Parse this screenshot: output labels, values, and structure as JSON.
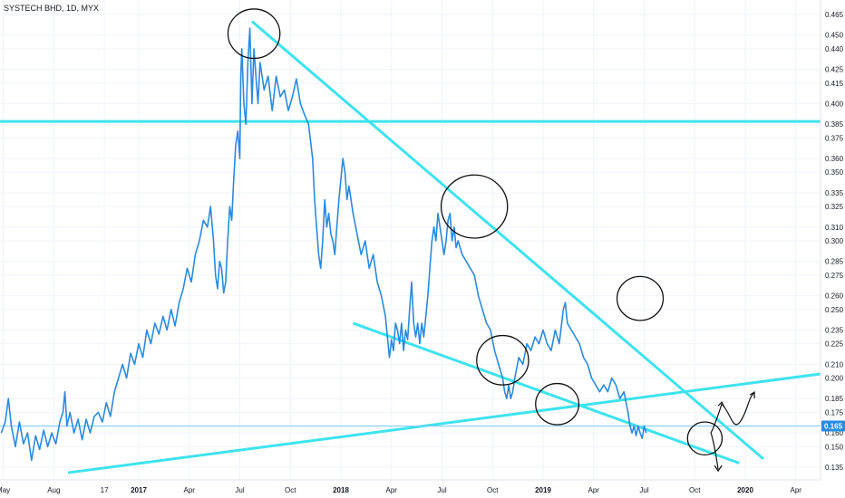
{
  "chart_data": {
    "type": "line",
    "title": "SYSTECH BHD, 1D, MYX",
    "ylim": [
      0.125,
      0.47
    ],
    "y_ticks": [
      "0.465",
      "0.450",
      "0.440",
      "0.425",
      "0.415",
      "0.400",
      "0.385",
      "0.375",
      "0.360",
      "0.350",
      "0.335",
      "0.325",
      "0.310",
      "0.300",
      "0.285",
      "0.275",
      "0.260",
      "0.250",
      "0.235",
      "0.225",
      "0.210",
      "0.200",
      "0.185",
      "0.175",
      "0.160",
      "0.150",
      "0.135"
    ],
    "x_ticks": [
      {
        "label": "May",
        "t": 2016.33,
        "year": false
      },
      {
        "label": "Aug",
        "t": 2016.58,
        "year": false
      },
      {
        "label": "17",
        "t": 2016.83,
        "year": false
      },
      {
        "label": "2017",
        "t": 2017.0,
        "year": true
      },
      {
        "label": "Apr",
        "t": 2017.25,
        "year": false
      },
      {
        "label": "Jul",
        "t": 2017.5,
        "year": false
      },
      {
        "label": "Oct",
        "t": 2017.75,
        "year": false
      },
      {
        "label": "2018",
        "t": 2018.0,
        "year": true
      },
      {
        "label": "Apr",
        "t": 2018.25,
        "year": false
      },
      {
        "label": "Jul",
        "t": 2018.5,
        "year": false
      },
      {
        "label": "Oct",
        "t": 2018.75,
        "year": false
      },
      {
        "label": "2019",
        "t": 2019.0,
        "year": true
      },
      {
        "label": "Apr",
        "t": 2019.25,
        "year": false
      },
      {
        "label": "Jul",
        "t": 2019.5,
        "year": false
      },
      {
        "label": "Oct",
        "t": 2019.75,
        "year": false
      },
      {
        "label": "2020",
        "t": 2020.0,
        "year": true
      },
      {
        "label": "Apr",
        "t": 2020.25,
        "year": false
      }
    ],
    "last_price": "0.165",
    "colors": {
      "price_line": "#2b8ade",
      "trendline": "#3ee3ee",
      "price_level": "#7ccbf0",
      "badge": "#2b8ade",
      "annotation": "#111111"
    },
    "series": [
      {
        "values": [
          [
            2016.32,
            0.16
          ],
          [
            2016.34,
            0.168
          ],
          [
            2016.355,
            0.185
          ],
          [
            2016.37,
            0.165
          ],
          [
            2016.39,
            0.15
          ],
          [
            2016.41,
            0.168
          ],
          [
            2016.43,
            0.152
          ],
          [
            2016.45,
            0.16
          ],
          [
            2016.47,
            0.14
          ],
          [
            2016.49,
            0.158
          ],
          [
            2016.51,
            0.148
          ],
          [
            2016.53,
            0.162
          ],
          [
            2016.55,
            0.15
          ],
          [
            2016.57,
            0.16
          ],
          [
            2016.59,
            0.152
          ],
          [
            2016.61,
            0.168
          ],
          [
            2016.625,
            0.175
          ],
          [
            2016.635,
            0.19
          ],
          [
            2016.645,
            0.165
          ],
          [
            2016.66,
            0.175
          ],
          [
            2016.68,
            0.16
          ],
          [
            2016.7,
            0.17
          ],
          [
            2016.72,
            0.155
          ],
          [
            2016.74,
            0.17
          ],
          [
            2016.76,
            0.16
          ],
          [
            2016.78,
            0.172
          ],
          [
            2016.8,
            0.175
          ],
          [
            2016.82,
            0.168
          ],
          [
            2016.84,
            0.182
          ],
          [
            2016.86,
            0.172
          ],
          [
            2016.88,
            0.19
          ],
          [
            2016.9,
            0.2
          ],
          [
            2016.92,
            0.21
          ],
          [
            2016.94,
            0.2
          ],
          [
            2016.96,
            0.218
          ],
          [
            2016.98,
            0.21
          ],
          [
            2017.0,
            0.225
          ],
          [
            2017.02,
            0.215
          ],
          [
            2017.04,
            0.235
          ],
          [
            2017.06,
            0.225
          ],
          [
            2017.08,
            0.24
          ],
          [
            2017.1,
            0.232
          ],
          [
            2017.12,
            0.245
          ],
          [
            2017.14,
            0.235
          ],
          [
            2017.16,
            0.25
          ],
          [
            2017.18,
            0.238
          ],
          [
            2017.2,
            0.255
          ],
          [
            2017.22,
            0.265
          ],
          [
            2017.24,
            0.28
          ],
          [
            2017.26,
            0.27
          ],
          [
            2017.28,
            0.29
          ],
          [
            2017.3,
            0.3
          ],
          [
            2017.32,
            0.315
          ],
          [
            2017.34,
            0.31
          ],
          [
            2017.355,
            0.325
          ],
          [
            2017.37,
            0.3
          ],
          [
            2017.38,
            0.275
          ],
          [
            2017.39,
            0.265
          ],
          [
            2017.4,
            0.285
          ],
          [
            2017.41,
            0.28
          ],
          [
            2017.42,
            0.262
          ],
          [
            2017.43,
            0.27
          ],
          [
            2017.44,
            0.3
          ],
          [
            2017.45,
            0.325
          ],
          [
            2017.46,
            0.315
          ],
          [
            2017.47,
            0.345
          ],
          [
            2017.48,
            0.37
          ],
          [
            2017.49,
            0.38
          ],
          [
            2017.5,
            0.36
          ],
          [
            2017.505,
            0.42
          ],
          [
            2017.51,
            0.44
          ],
          [
            2017.52,
            0.4
          ],
          [
            2017.53,
            0.385
          ],
          [
            2017.54,
            0.43
          ],
          [
            2017.55,
            0.455
          ],
          [
            2017.56,
            0.4
          ],
          [
            2017.57,
            0.44
          ],
          [
            2017.58,
            0.42
          ],
          [
            2017.59,
            0.4
          ],
          [
            2017.6,
            0.43
          ],
          [
            2017.62,
            0.41
          ],
          [
            2017.64,
            0.42
          ],
          [
            2017.66,
            0.395
          ],
          [
            2017.68,
            0.42
          ],
          [
            2017.7,
            0.405
          ],
          [
            2017.72,
            0.41
          ],
          [
            2017.74,
            0.395
          ],
          [
            2017.76,
            0.405
          ],
          [
            2017.78,
            0.418
          ],
          [
            2017.8,
            0.4
          ],
          [
            2017.82,
            0.392
          ],
          [
            2017.84,
            0.385
          ],
          [
            2017.86,
            0.36
          ],
          [
            2017.87,
            0.33
          ],
          [
            2017.88,
            0.31
          ],
          [
            2017.89,
            0.29
          ],
          [
            2017.9,
            0.28
          ],
          [
            2017.91,
            0.3
          ],
          [
            2017.92,
            0.33
          ],
          [
            2017.93,
            0.31
          ],
          [
            2017.94,
            0.32
          ],
          [
            2017.95,
            0.305
          ],
          [
            2017.96,
            0.3
          ],
          [
            2017.97,
            0.29
          ],
          [
            2017.98,
            0.31
          ],
          [
            2017.99,
            0.33
          ],
          [
            2018.0,
            0.345
          ],
          [
            2018.01,
            0.36
          ],
          [
            2018.02,
            0.35
          ],
          [
            2018.03,
            0.33
          ],
          [
            2018.04,
            0.34
          ],
          [
            2018.06,
            0.32
          ],
          [
            2018.08,
            0.305
          ],
          [
            2018.1,
            0.29
          ],
          [
            2018.12,
            0.3
          ],
          [
            2018.14,
            0.28
          ],
          [
            2018.16,
            0.29
          ],
          [
            2018.18,
            0.27
          ],
          [
            2018.2,
            0.26
          ],
          [
            2018.22,
            0.245
          ],
          [
            2018.23,
            0.23
          ],
          [
            2018.24,
            0.215
          ],
          [
            2018.25,
            0.228
          ],
          [
            2018.26,
            0.22
          ],
          [
            2018.27,
            0.24
          ],
          [
            2018.28,
            0.235
          ],
          [
            2018.29,
            0.225
          ],
          [
            2018.3,
            0.24
          ],
          [
            2018.31,
            0.22
          ],
          [
            2018.32,
            0.235
          ],
          [
            2018.33,
            0.228
          ],
          [
            2018.34,
            0.25
          ],
          [
            2018.35,
            0.27
          ],
          [
            2018.36,
            0.24
          ],
          [
            2018.37,
            0.23
          ],
          [
            2018.38,
            0.24
          ],
          [
            2018.39,
            0.225
          ],
          [
            2018.4,
            0.24
          ],
          [
            2018.41,
            0.23
          ],
          [
            2018.42,
            0.245
          ],
          [
            2018.43,
            0.26
          ],
          [
            2018.44,
            0.28
          ],
          [
            2018.45,
            0.3
          ],
          [
            2018.46,
            0.31
          ],
          [
            2018.47,
            0.3
          ],
          [
            2018.48,
            0.32
          ],
          [
            2018.49,
            0.31
          ],
          [
            2018.5,
            0.3
          ],
          [
            2018.51,
            0.29
          ],
          [
            2018.52,
            0.3
          ],
          [
            2018.53,
            0.315
          ],
          [
            2018.54,
            0.32
          ],
          [
            2018.55,
            0.3
          ],
          [
            2018.56,
            0.31
          ],
          [
            2018.57,
            0.295
          ],
          [
            2018.58,
            0.3
          ],
          [
            2018.6,
            0.29
          ],
          [
            2018.62,
            0.285
          ],
          [
            2018.64,
            0.28
          ],
          [
            2018.66,
            0.275
          ],
          [
            2018.68,
            0.26
          ],
          [
            2018.7,
            0.25
          ],
          [
            2018.72,
            0.24
          ],
          [
            2018.74,
            0.235
          ],
          [
            2018.76,
            0.22
          ],
          [
            2018.78,
            0.21
          ],
          [
            2018.8,
            0.2
          ],
          [
            2018.81,
            0.19
          ],
          [
            2018.82,
            0.185
          ],
          [
            2018.83,
            0.195
          ],
          [
            2018.84,
            0.185
          ],
          [
            2018.85,
            0.19
          ],
          [
            2018.86,
            0.2
          ],
          [
            2018.88,
            0.215
          ],
          [
            2018.9,
            0.21
          ],
          [
            2018.92,
            0.225
          ],
          [
            2018.94,
            0.22
          ],
          [
            2018.96,
            0.23
          ],
          [
            2018.98,
            0.225
          ],
          [
            2019.0,
            0.235
          ],
          [
            2019.02,
            0.225
          ],
          [
            2019.04,
            0.22
          ],
          [
            2019.06,
            0.235
          ],
          [
            2019.08,
            0.225
          ],
          [
            2019.1,
            0.25
          ],
          [
            2019.11,
            0.255
          ],
          [
            2019.12,
            0.24
          ],
          [
            2019.14,
            0.235
          ],
          [
            2019.16,
            0.23
          ],
          [
            2019.18,
            0.225
          ],
          [
            2019.2,
            0.215
          ],
          [
            2019.22,
            0.21
          ],
          [
            2019.24,
            0.2
          ],
          [
            2019.26,
            0.195
          ],
          [
            2019.28,
            0.19
          ],
          [
            2019.3,
            0.195
          ],
          [
            2019.32,
            0.19
          ],
          [
            2019.34,
            0.2
          ],
          [
            2019.36,
            0.195
          ],
          [
            2019.38,
            0.185
          ],
          [
            2019.4,
            0.19
          ],
          [
            2019.42,
            0.175
          ],
          [
            2019.43,
            0.165
          ],
          [
            2019.44,
            0.16
          ],
          [
            2019.45,
            0.165
          ],
          [
            2019.46,
            0.158
          ],
          [
            2019.47,
            0.165
          ],
          [
            2019.48,
            0.16
          ],
          [
            2019.49,
            0.156
          ],
          [
            2019.5,
            0.165
          ],
          [
            2019.51,
            0.16
          ]
        ]
      }
    ]
  },
  "annotations": {
    "circles": [
      {
        "cx": 2017.57,
        "cy": 0.451,
        "r": 0.018
      },
      {
        "cx": 2018.66,
        "cy": 0.325,
        "r": 0.023
      },
      {
        "cx": 2019.48,
        "cy": 0.258,
        "r": 0.016
      },
      {
        "cx": 2018.8,
        "cy": 0.213,
        "r": 0.018
      },
      {
        "cx": 2019.07,
        "cy": 0.181,
        "r": 0.015
      },
      {
        "cx": 2019.8,
        "cy": 0.156,
        "r": 0.012
      }
    ]
  }
}
